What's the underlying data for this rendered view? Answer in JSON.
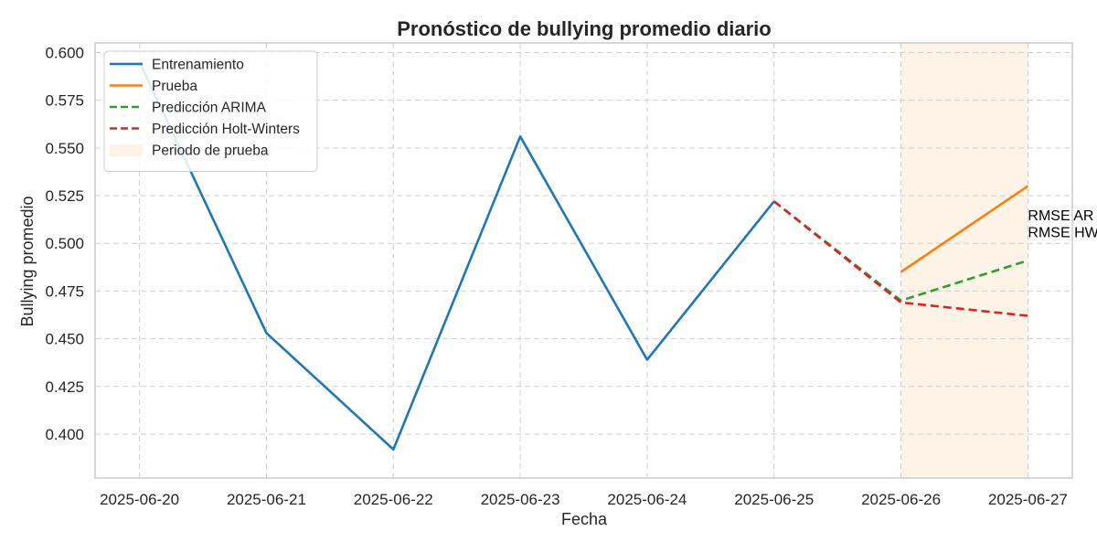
{
  "chart_data": {
    "type": "line",
    "title": "Pronóstico de bullying promedio diario",
    "xlabel": "Fecha",
    "ylabel": "Bullying promedio",
    "x_ticks": [
      "2025-06-20",
      "2025-06-21",
      "2025-06-22",
      "2025-06-23",
      "2025-06-24",
      "2025-06-25",
      "2025-06-26",
      "2025-06-27"
    ],
    "y_ticks": [
      "0.400",
      "0.425",
      "0.450",
      "0.475",
      "0.500",
      "0.525",
      "0.550",
      "0.575",
      "0.600"
    ],
    "xlim": [
      "2025-06-19.65",
      "2025-06-27.35"
    ],
    "ylim": [
      0.377,
      0.605
    ],
    "grid": true,
    "legend_position": "top-left",
    "series": [
      {
        "name": "Entrenamiento",
        "color": "#1f77b4",
        "dash": "solid",
        "points": [
          {
            "x": "2025-06-20",
            "y": 0.595
          },
          {
            "x": "2025-06-21",
            "y": 0.453
          },
          {
            "x": "2025-06-22",
            "y": 0.392
          },
          {
            "x": "2025-06-23",
            "y": 0.556
          },
          {
            "x": "2025-06-24",
            "y": 0.439
          },
          {
            "x": "2025-06-25",
            "y": 0.522
          }
        ]
      },
      {
        "name": "Prueba",
        "color": "#ff7f0e",
        "dash": "solid",
        "points": [
          {
            "x": "2025-06-26",
            "y": 0.485
          },
          {
            "x": "2025-06-27",
            "y": 0.53
          }
        ]
      },
      {
        "name": "Predicción ARIMA",
        "color": "#2ca02c",
        "dash": "dashed",
        "points": [
          {
            "x": "2025-06-25",
            "y": 0.522
          },
          {
            "x": "2025-06-26",
            "y": 0.47
          },
          {
            "x": "2025-06-27",
            "y": 0.491
          }
        ]
      },
      {
        "name": "Predicción Holt-Winters",
        "color": "#d62728",
        "dash": "dashed",
        "points": [
          {
            "x": "2025-06-25",
            "y": 0.522
          },
          {
            "x": "2025-06-26",
            "y": 0.469
          },
          {
            "x": "2025-06-27",
            "y": 0.462
          }
        ]
      }
    ],
    "shaded_region": {
      "name": "Periodo de prueba",
      "color": "#fdebd7",
      "x_start": "2025-06-26",
      "x_end": "2025-06-27"
    },
    "annotations": [
      {
        "text": "RMSE AR",
        "x": "2025-06-27",
        "y": 0.515
      },
      {
        "text": "RMSE HW",
        "x": "2025-06-27",
        "y": 0.506
      }
    ]
  }
}
